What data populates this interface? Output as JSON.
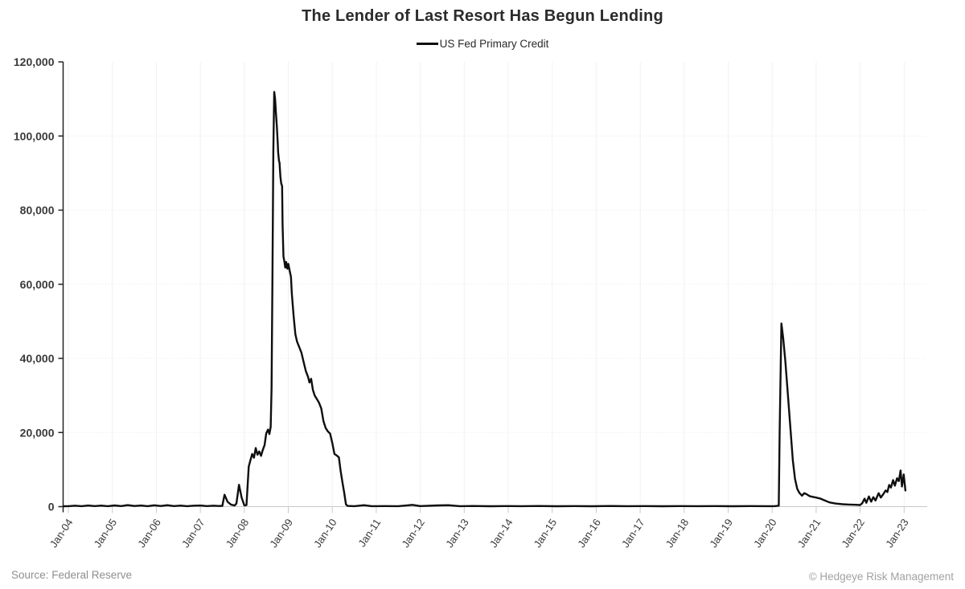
{
  "header": {
    "title": "The Lender of Last Resort Has Begun Lending",
    "legend": {
      "label": "US Fed Primary Credit",
      "swatch_color": "#0f0f0f"
    }
  },
  "footer": {
    "source": "Source: Federal Reserve",
    "copyright": "© Hedgeye Risk Management"
  },
  "chart_data": {
    "type": "line",
    "title": "The Lender of Last Resort Has Begun Lending",
    "xlabel": "",
    "ylabel": "",
    "legend_position": "top-center",
    "grid": {
      "horizontal": "dotted-light",
      "vertical": "solid-faint"
    },
    "xlim": [
      2003.88,
      2023.55
    ],
    "ylim": [
      0,
      120000
    ],
    "colors": {
      "line": "#0f0f0f",
      "grid_h": "#e7e7e7",
      "grid_v": "#f1f1f1",
      "y_axis": "#222222",
      "x_axis": "#c9c9c9",
      "tick_label": "#3a3a3a",
      "title": "#2b2b2b",
      "muted": "#8f8f8f"
    },
    "y_ticks": [
      {
        "value": 0,
        "label": "0"
      },
      {
        "value": 20000,
        "label": "20,000"
      },
      {
        "value": 40000,
        "label": "40,000"
      },
      {
        "value": 60000,
        "label": "60,000"
      },
      {
        "value": 80000,
        "label": "80,000"
      },
      {
        "value": 100000,
        "label": "100,000"
      },
      {
        "value": 120000,
        "label": "120,000"
      }
    ],
    "x_ticks": [
      {
        "year": 2004,
        "label": "Jan-04"
      },
      {
        "year": 2005,
        "label": "Jan-05"
      },
      {
        "year": 2006,
        "label": "Jan-06"
      },
      {
        "year": 2007,
        "label": "Jan-07"
      },
      {
        "year": 2008,
        "label": "Jan-08"
      },
      {
        "year": 2009,
        "label": "Jan-09"
      },
      {
        "year": 2010,
        "label": "Jan-10"
      },
      {
        "year": 2011,
        "label": "Jan-11"
      },
      {
        "year": 2012,
        "label": "Jan-12"
      },
      {
        "year": 2013,
        "label": "Jan-13"
      },
      {
        "year": 2014,
        "label": "Jan-14"
      },
      {
        "year": 2015,
        "label": "Jan-15"
      },
      {
        "year": 2016,
        "label": "Jan-16"
      },
      {
        "year": 2017,
        "label": "Jan-17"
      },
      {
        "year": 2018,
        "label": "Jan-18"
      },
      {
        "year": 2019,
        "label": "Jan-19"
      },
      {
        "year": 2020,
        "label": "Jan-20"
      },
      {
        "year": 2021,
        "label": "Jan-21"
      },
      {
        "year": 2022,
        "label": "Jan-22"
      },
      {
        "year": 2023,
        "label": "Jan-23"
      }
    ],
    "series": [
      {
        "name": "US Fed Primary Credit",
        "color": "#0f0f0f",
        "points": [
          [
            2003.89,
            100
          ],
          [
            2004.0,
            120
          ],
          [
            2004.15,
            260
          ],
          [
            2004.3,
            120
          ],
          [
            2004.45,
            300
          ],
          [
            2004.6,
            150
          ],
          [
            2004.75,
            280
          ],
          [
            2004.9,
            130
          ],
          [
            2005.05,
            330
          ],
          [
            2005.2,
            150
          ],
          [
            2005.35,
            420
          ],
          [
            2005.5,
            180
          ],
          [
            2005.65,
            300
          ],
          [
            2005.8,
            140
          ],
          [
            2005.95,
            360
          ],
          [
            2006.1,
            180
          ],
          [
            2006.25,
            400
          ],
          [
            2006.4,
            160
          ],
          [
            2006.55,
            280
          ],
          [
            2006.7,
            130
          ],
          [
            2006.85,
            260
          ],
          [
            2007.0,
            310
          ],
          [
            2007.15,
            150
          ],
          [
            2007.3,
            260
          ],
          [
            2007.42,
            180
          ],
          [
            2007.5,
            220
          ],
          [
            2007.55,
            3200
          ],
          [
            2007.62,
            1300
          ],
          [
            2007.7,
            520
          ],
          [
            2007.78,
            300
          ],
          [
            2007.82,
            850
          ],
          [
            2007.88,
            5900
          ],
          [
            2007.94,
            2400
          ],
          [
            2008.0,
            350
          ],
          [
            2008.05,
            420
          ],
          [
            2008.1,
            10800
          ],
          [
            2008.14,
            12600
          ],
          [
            2008.18,
            14200
          ],
          [
            2008.22,
            13200
          ],
          [
            2008.26,
            15800
          ],
          [
            2008.3,
            14000
          ],
          [
            2008.34,
            14900
          ],
          [
            2008.38,
            13700
          ],
          [
            2008.42,
            15300
          ],
          [
            2008.46,
            16600
          ],
          [
            2008.5,
            19800
          ],
          [
            2008.54,
            20800
          ],
          [
            2008.57,
            19600
          ],
          [
            2008.6,
            21500
          ],
          [
            2008.62,
            32000
          ],
          [
            2008.64,
            62000
          ],
          [
            2008.66,
            96000
          ],
          [
            2008.68,
            111900
          ],
          [
            2008.7,
            110000
          ],
          [
            2008.72,
            106000
          ],
          [
            2008.74,
            102500
          ],
          [
            2008.76,
            98000
          ],
          [
            2008.77,
            95500
          ],
          [
            2008.79,
            93200
          ],
          [
            2008.8,
            92800
          ],
          [
            2008.82,
            89000
          ],
          [
            2008.84,
            87200
          ],
          [
            2008.86,
            86500
          ],
          [
            2008.87,
            76000
          ],
          [
            2008.89,
            67500
          ],
          [
            2008.91,
            66200
          ],
          [
            2008.93,
            64500
          ],
          [
            2008.95,
            66000
          ],
          [
            2008.98,
            64200
          ],
          [
            2009.0,
            65500
          ],
          [
            2009.03,
            63800
          ],
          [
            2009.06,
            62000
          ],
          [
            2009.08,
            57500
          ],
          [
            2009.12,
            51500
          ],
          [
            2009.16,
            46500
          ],
          [
            2009.2,
            44500
          ],
          [
            2009.25,
            43000
          ],
          [
            2009.3,
            41500
          ],
          [
            2009.35,
            39000
          ],
          [
            2009.4,
            36500
          ],
          [
            2009.45,
            35000
          ],
          [
            2009.48,
            33500
          ],
          [
            2009.52,
            34500
          ],
          [
            2009.56,
            31500
          ],
          [
            2009.6,
            30000
          ],
          [
            2009.65,
            29000
          ],
          [
            2009.7,
            28000
          ],
          [
            2009.75,
            26500
          ],
          [
            2009.8,
            23000
          ],
          [
            2009.85,
            21200
          ],
          [
            2009.9,
            20300
          ],
          [
            2009.95,
            19700
          ],
          [
            2010.0,
            17200
          ],
          [
            2010.05,
            14200
          ],
          [
            2010.1,
            13800
          ],
          [
            2010.15,
            13300
          ],
          [
            2010.19,
            9600
          ],
          [
            2010.23,
            6600
          ],
          [
            2010.27,
            3800
          ],
          [
            2010.31,
            600
          ],
          [
            2010.35,
            200
          ],
          [
            2010.5,
            120
          ],
          [
            2010.72,
            380
          ],
          [
            2010.9,
            130
          ],
          [
            2011.2,
            160
          ],
          [
            2011.5,
            120
          ],
          [
            2011.82,
            470
          ],
          [
            2012.0,
            150
          ],
          [
            2012.38,
            320
          ],
          [
            2012.64,
            380
          ],
          [
            2012.9,
            130
          ],
          [
            2013.2,
            180
          ],
          [
            2013.6,
            110
          ],
          [
            2013.9,
            160
          ],
          [
            2014.3,
            120
          ],
          [
            2014.7,
            180
          ],
          [
            2015.1,
            110
          ],
          [
            2015.5,
            160
          ],
          [
            2015.9,
            110
          ],
          [
            2016.3,
            170
          ],
          [
            2016.7,
            120
          ],
          [
            2017.1,
            160
          ],
          [
            2017.5,
            110
          ],
          [
            2017.9,
            150
          ],
          [
            2018.3,
            120
          ],
          [
            2018.7,
            160
          ],
          [
            2019.1,
            110
          ],
          [
            2019.5,
            150
          ],
          [
            2019.9,
            120
          ],
          [
            2020.05,
            140
          ],
          [
            2020.15,
            250
          ],
          [
            2020.17,
            20000
          ],
          [
            2020.21,
            49400
          ],
          [
            2020.25,
            45500
          ],
          [
            2020.3,
            39200
          ],
          [
            2020.36,
            29800
          ],
          [
            2020.42,
            20300
          ],
          [
            2020.47,
            12500
          ],
          [
            2020.52,
            7500
          ],
          [
            2020.57,
            4800
          ],
          [
            2020.62,
            3700
          ],
          [
            2020.68,
            2950
          ],
          [
            2020.73,
            3650
          ],
          [
            2020.78,
            3350
          ],
          [
            2020.85,
            2850
          ],
          [
            2020.92,
            2650
          ],
          [
            2021.0,
            2450
          ],
          [
            2021.1,
            2150
          ],
          [
            2021.2,
            1650
          ],
          [
            2021.3,
            1150
          ],
          [
            2021.45,
            820
          ],
          [
            2021.6,
            660
          ],
          [
            2021.75,
            560
          ],
          [
            2021.9,
            490
          ],
          [
            2022.0,
            440
          ],
          [
            2022.05,
            950
          ],
          [
            2022.1,
            2150
          ],
          [
            2022.14,
            1050
          ],
          [
            2022.2,
            2750
          ],
          [
            2022.25,
            1350
          ],
          [
            2022.3,
            2550
          ],
          [
            2022.35,
            1650
          ],
          [
            2022.42,
            3650
          ],
          [
            2022.47,
            2450
          ],
          [
            2022.52,
            3250
          ],
          [
            2022.58,
            4350
          ],
          [
            2022.62,
            3950
          ],
          [
            2022.66,
            5850
          ],
          [
            2022.7,
            5150
          ],
          [
            2022.75,
            7150
          ],
          [
            2022.79,
            5650
          ],
          [
            2022.84,
            7650
          ],
          [
            2022.88,
            6900
          ],
          [
            2022.92,
            9750
          ],
          [
            2022.95,
            5450
          ],
          [
            2022.99,
            8700
          ],
          [
            2023.03,
            4350
          ]
        ]
      }
    ]
  }
}
